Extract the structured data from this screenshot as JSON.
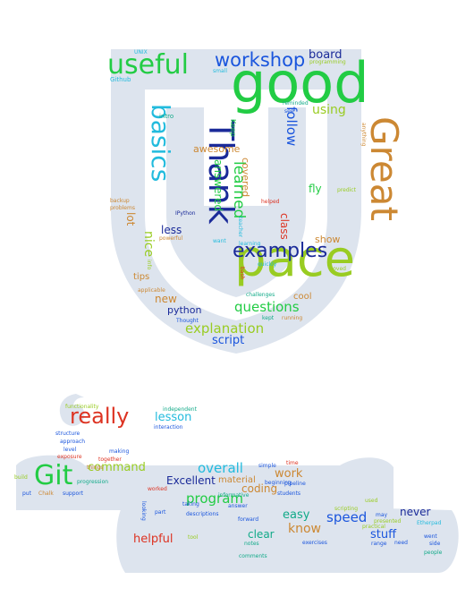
{
  "colors": {
    "green": "#22cc44",
    "lime": "#99cc22",
    "blue": "#1a55dd",
    "navy": "#1a2a99",
    "orange": "#cc8833",
    "red": "#dd3322",
    "cyan": "#22bbdd",
    "teal": "#11aa88",
    "shape": "#dde4ee"
  },
  "words": [
    {
      "text": "good"
    },
    {
      "text": "pace"
    },
    {
      "text": "Great"
    },
    {
      "text": "useful"
    },
    {
      "text": "Thank"
    },
    {
      "text": "basics"
    },
    {
      "text": "examples"
    },
    {
      "text": "workshop"
    },
    {
      "text": "learned"
    },
    {
      "text": "questions"
    },
    {
      "text": "explanation"
    },
    {
      "text": "script"
    },
    {
      "text": "python"
    },
    {
      "text": "follow"
    },
    {
      "text": "using"
    },
    {
      "text": "board"
    },
    {
      "text": "awesome"
    },
    {
      "text": "answered"
    },
    {
      "text": "covered"
    },
    {
      "text": "less"
    },
    {
      "text": "lot"
    },
    {
      "text": "nice"
    },
    {
      "text": "tips"
    },
    {
      "text": "new"
    },
    {
      "text": "class"
    },
    {
      "text": "show"
    },
    {
      "text": "fly"
    },
    {
      "text": "cool"
    },
    {
      "text": "Keep"
    },
    {
      "text": "intro"
    },
    {
      "text": "UNIX"
    },
    {
      "text": "Github"
    },
    {
      "text": "small"
    },
    {
      "text": "programming"
    },
    {
      "text": "reminded"
    },
    {
      "text": "see"
    },
    {
      "text": "anything"
    },
    {
      "text": "backup"
    },
    {
      "text": "problems"
    },
    {
      "text": "IPython"
    },
    {
      "text": "powerful"
    },
    {
      "text": "want"
    },
    {
      "text": "teacher"
    },
    {
      "text": "helped"
    },
    {
      "text": "predict"
    },
    {
      "text": "learning"
    },
    {
      "text": "quickly"
    },
    {
      "text": "Loved"
    },
    {
      "text": "applicable"
    },
    {
      "text": "bash"
    },
    {
      "text": "challenges"
    },
    {
      "text": "Thought"
    },
    {
      "text": "kept"
    },
    {
      "text": "running"
    },
    {
      "text": "info"
    },
    {
      "text": "really"
    },
    {
      "text": "lesson"
    },
    {
      "text": "Git"
    },
    {
      "text": "command"
    },
    {
      "text": "overall"
    },
    {
      "text": "program"
    },
    {
      "text": "Excellent"
    },
    {
      "text": "material"
    },
    {
      "text": "work"
    },
    {
      "text": "coding"
    },
    {
      "text": "easy"
    },
    {
      "text": "know"
    },
    {
      "text": "speed"
    },
    {
      "text": "stuff"
    },
    {
      "text": "never"
    },
    {
      "text": "clear"
    },
    {
      "text": "helpful"
    },
    {
      "text": "functionality"
    },
    {
      "text": "independent"
    },
    {
      "text": "interaction"
    },
    {
      "text": "structure"
    },
    {
      "text": "approach"
    },
    {
      "text": "level"
    },
    {
      "text": "exposure"
    },
    {
      "text": "things"
    },
    {
      "text": "progression"
    },
    {
      "text": "making"
    },
    {
      "text": "together"
    },
    {
      "text": "build"
    },
    {
      "text": "put"
    },
    {
      "text": "Chalk"
    },
    {
      "text": "support"
    },
    {
      "text": "worked"
    },
    {
      "text": "simple"
    },
    {
      "text": "time"
    },
    {
      "text": "pipeline"
    },
    {
      "text": "beginning"
    },
    {
      "text": "students"
    },
    {
      "text": "informative"
    },
    {
      "text": "taking"
    },
    {
      "text": "answer"
    },
    {
      "text": "forward"
    },
    {
      "text": "descriptions"
    },
    {
      "text": "part"
    },
    {
      "text": "looking"
    },
    {
      "text": "notes"
    },
    {
      "text": "comments"
    },
    {
      "text": "exercises"
    },
    {
      "text": "scripting"
    },
    {
      "text": "used"
    },
    {
      "text": "may"
    },
    {
      "text": "presented"
    },
    {
      "text": "practical"
    },
    {
      "text": "range"
    },
    {
      "text": "need"
    },
    {
      "text": "Etherpad"
    },
    {
      "text": "went"
    },
    {
      "text": "side"
    },
    {
      "text": "people"
    },
    {
      "text": "tool"
    }
  ]
}
